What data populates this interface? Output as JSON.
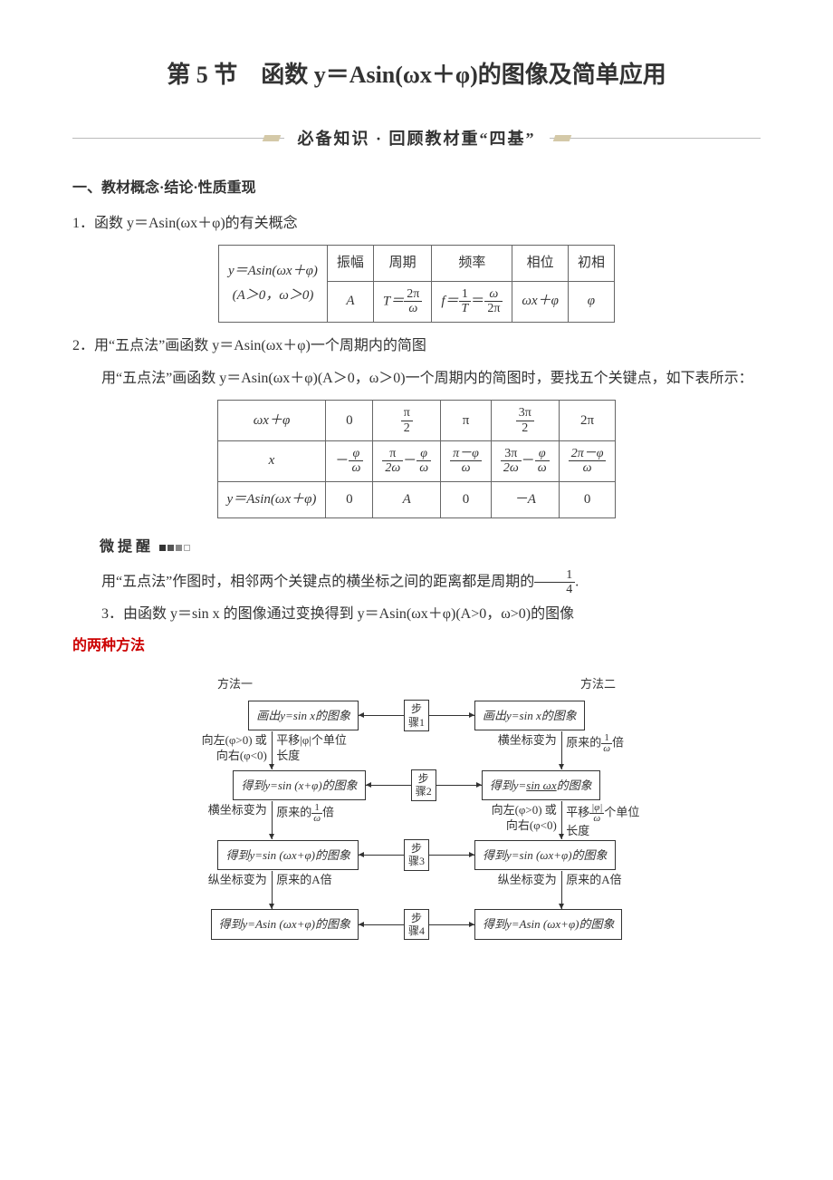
{
  "title": "第 5 节　函数 y＝Asin(ωx＋φ)的图像及简单应用",
  "banner": "必备知识 · 回顾教材重“四基”",
  "section1_head": "一、教材概念·结论·性质重现",
  "item1_head": "1．函数 y＝Asin(ωx＋φ)的有关概念",
  "table1": {
    "left_top": "y＝Asin(ωx＋φ)",
    "left_bot": "(A＞0，ω＞0)",
    "headers": [
      "振幅",
      "周期",
      "频率",
      "相位",
      "初相"
    ],
    "row": {
      "amp": "A",
      "period_lhs": "T＝",
      "period_num": "2π",
      "period_den": "ω",
      "freq_lhs": "f＝",
      "freq_mid_num": "1",
      "freq_mid_den": "T",
      "freq_eq": "＝",
      "freq_r_num": "ω",
      "freq_r_den": "2π",
      "phase": "ωx＋φ",
      "init": "φ"
    }
  },
  "item2_head": "2．用“五点法”画函数 y＝Asin(ωx＋φ)一个周期内的简图",
  "item2_text": "用“五点法”画函数 y＝Asin(ωx＋φ)(A＞0，ω＞0)一个周期内的简图时，要找五个关键点，如下表所示：",
  "table2": {
    "r1_label": "ωx＋φ",
    "r1": {
      "c1": "0",
      "c2_num": "π",
      "c2_den": "2",
      "c3": "π",
      "c4_num": "3π",
      "c4_den": "2",
      "c5": "2π"
    },
    "r2_label": "x",
    "r2": {
      "c1_pre": "－",
      "c1_num": "φ",
      "c1_den": "ω",
      "c2a_num": "π",
      "c2a_den": "2ω",
      "c2_mid": "－",
      "c2b_num": "φ",
      "c2b_den": "ω",
      "c3_num": "π－φ",
      "c3_den": "ω",
      "c4a_num": "3π",
      "c4a_den": "2ω",
      "c4_mid": "－",
      "c4b_num": "φ",
      "c4b_den": "ω",
      "c5_num": "2π－φ",
      "c5_den": "ω"
    },
    "r3_label": "y＝Asin(ωx＋φ)",
    "r3": [
      "0",
      "A",
      "0",
      "－A",
      "0"
    ]
  },
  "tip_label": "微提醒",
  "tip_text_pre": "用“五点法”作图时，相邻两个关键点的横坐标之间的距离都是周期的",
  "tip_frac_num": "1",
  "tip_frac_den": "4",
  "tip_text_post": ".",
  "item3_head_pre": "3．由函数 y＝sin x 的图像通过变换得到 y＝Asin(ωx＋φ)(A>0，ω>0)的图像",
  "item3_head_post": "的两种方法",
  "flow": {
    "head_left": "方法一",
    "head_right": "方法二",
    "steps": [
      "步骤1",
      "步骤2",
      "步骤3",
      "步骤4"
    ],
    "left_boxes": [
      "画出y=sin x的图象",
      "得到y=sin (x+φ)的图象",
      "得到y=sin (ωx+φ)的图象",
      "得到y=Asin (ωx+φ)的图象"
    ],
    "right_boxes": [
      "画出y=sin x的图象",
      "得到y=sin ωx的图象",
      "得到y=sin (ωx+φ)的图象",
      "得到y=Asin (ωx+φ)的图象"
    ],
    "left_trans": [
      {
        "l1": "向左(φ>0) 或",
        "l2": "向右(φ<0)",
        "r1": "平移|φ|个单位",
        "r2": "长度"
      },
      {
        "l": "横坐标变为",
        "r_pre": "原来的",
        "r_num": "1",
        "r_den": "ω",
        "r_post": "倍"
      },
      {
        "l": "纵坐标变为",
        "r": "原来的A倍"
      }
    ],
    "right_trans": [
      {
        "l": "横坐标变为",
        "r_pre": "原来的",
        "r_num": "1",
        "r_den": "ω",
        "r_post": "倍"
      },
      {
        "l1": "向左(φ>0) 或",
        "l2": "向右(φ<0)",
        "r1_pre": "平移",
        "r1_num": "|φ|",
        "r1_den": "ω",
        "r1_post": "个单位",
        "r2": "长度"
      },
      {
        "l": "纵坐标变为",
        "r": "原来的A倍"
      }
    ],
    "underline_text": "sin ωx"
  },
  "colors": {
    "text": "#333333",
    "highlight": "#cc0000",
    "border": "#666666",
    "banner_deco": "#d4c9a8"
  }
}
